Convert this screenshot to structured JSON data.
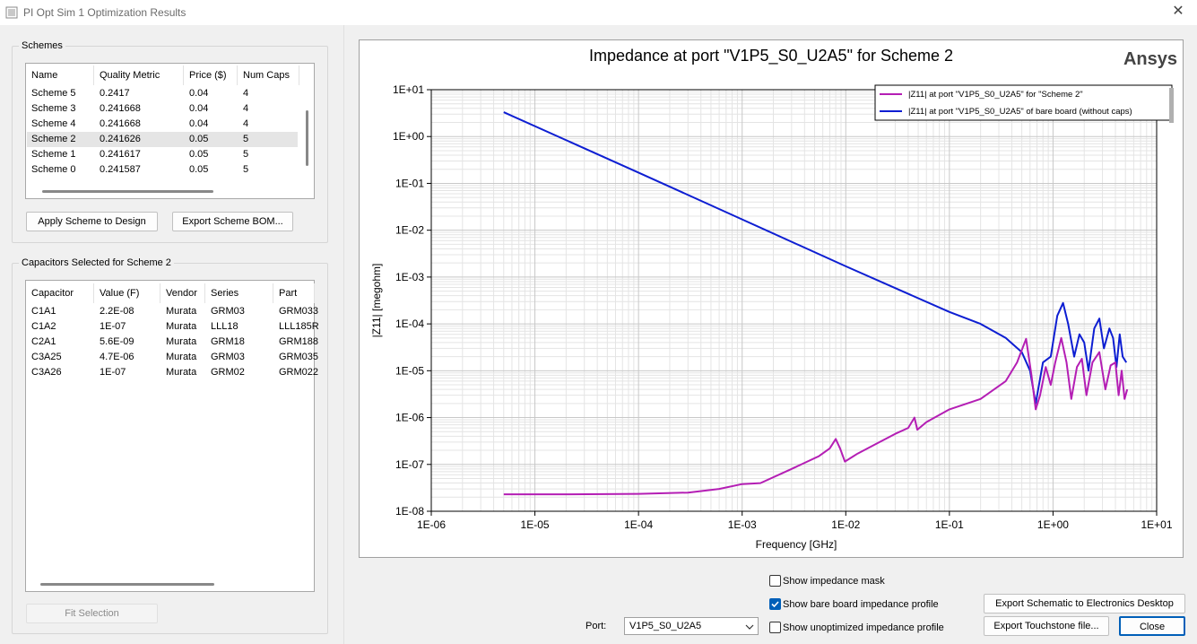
{
  "window": {
    "title": "PI Opt Sim 1 Optimization Results"
  },
  "schemes": {
    "group_title": "Schemes",
    "headers": [
      "Name",
      "Quality Metric",
      "Price ($)",
      "Num Caps"
    ],
    "rows": [
      [
        "Scheme 5",
        "0.2417",
        "0.04",
        "4"
      ],
      [
        "Scheme 3",
        "0.241668",
        "0.04",
        "4"
      ],
      [
        "Scheme 4",
        "0.241668",
        "0.04",
        "4"
      ],
      [
        "Scheme 2",
        "0.241626",
        "0.05",
        "5"
      ],
      [
        "Scheme 1",
        "0.241617",
        "0.05",
        "5"
      ],
      [
        "Scheme 0",
        "0.241587",
        "0.05",
        "5"
      ]
    ],
    "selected_index": 3,
    "apply_label": "Apply Scheme to Design",
    "export_bom_label": "Export Scheme BOM..."
  },
  "capacitors": {
    "group_title": "Capacitors Selected for Scheme 2",
    "headers": [
      "Capacitor",
      "Value (F)",
      "Vendor",
      "Series",
      "Part"
    ],
    "rows": [
      [
        "C1A1",
        "2.2E-08",
        "Murata",
        "GRM03",
        "GRM033"
      ],
      [
        "C1A2",
        "1E-07",
        "Murata",
        "LLL18",
        "LLL185R"
      ],
      [
        "C2A1",
        "5.6E-09",
        "Murata",
        "GRM18",
        "GRM188"
      ],
      [
        "C3A25",
        "4.7E-06",
        "Murata",
        "GRM03",
        "GRM035"
      ],
      [
        "C3A26",
        "1E-07",
        "Murata",
        "GRM02",
        "GRM022"
      ]
    ],
    "fit_label": "Fit Selection"
  },
  "controls": {
    "show_mask_label": "Show impedance mask",
    "show_mask_checked": false,
    "show_bare_label": "Show bare board impedance profile",
    "show_bare_checked": true,
    "show_unopt_label": "Show unoptimized impedance profile",
    "show_unopt_checked": false,
    "port_label": "Port:",
    "port_value": "V1P5_S0_U2A5",
    "export_schematic_label": "Export Schematic to Electronics Desktop",
    "export_touchstone_label": "Export Touchstone file...",
    "close_label": "Close"
  },
  "chart_data": {
    "type": "line",
    "title": "Impedance at port \"V1P5_S0_U2A5\" for Scheme 2",
    "brand": "Ansys",
    "xlabel": "Frequency [GHz]",
    "ylabel": "|Z11| [megohm]",
    "x_scale": "log",
    "y_scale": "log",
    "xlim": [
      1e-06,
      10
    ],
    "ylim": [
      1e-08,
      10
    ],
    "x_ticks": [
      "1E-06",
      "1E-05",
      "1E-04",
      "1E-03",
      "1E-02",
      "1E-01",
      "1E+00",
      "1E+01"
    ],
    "y_ticks": [
      "1E-08",
      "1E-07",
      "1E-06",
      "1E-05",
      "1E-04",
      "1E-03",
      "1E-02",
      "1E-01",
      "1E+00",
      "1E+01"
    ],
    "grid": true,
    "legend_position": "top-right",
    "series": [
      {
        "name": "|Z11| at port \"V1P5_S0_U2A5\" for \"Scheme 2\"",
        "color": "#b41eb4",
        "points": [
          [
            5e-06,
            2.3e-08
          ],
          [
            2e-05,
            2.3e-08
          ],
          [
            0.0001,
            2.35e-08
          ],
          [
            0.0003,
            2.5e-08
          ],
          [
            0.0006,
            3e-08
          ],
          [
            0.001,
            3.8e-08
          ],
          [
            0.0015,
            4e-08
          ],
          [
            0.003,
            8e-08
          ],
          [
            0.0055,
            1.5e-07
          ],
          [
            0.007,
            2.2e-07
          ],
          [
            0.008,
            3.5e-07
          ],
          [
            0.0088,
            2.2e-07
          ],
          [
            0.0098,
            1.15e-07
          ],
          [
            0.013,
            1.7e-07
          ],
          [
            0.02,
            2.8e-07
          ],
          [
            0.03,
            4.5e-07
          ],
          [
            0.04,
            6e-07
          ],
          [
            0.046,
            1e-06
          ],
          [
            0.049,
            5.5e-07
          ],
          [
            0.06,
            8e-07
          ],
          [
            0.1,
            1.5e-06
          ],
          [
            0.2,
            2.5e-06
          ],
          [
            0.35,
            6e-06
          ],
          [
            0.45,
            1.5e-05
          ],
          [
            0.55,
            4.8e-05
          ],
          [
            0.62,
            8e-06
          ],
          [
            0.68,
            1.5e-06
          ],
          [
            0.75,
            3e-06
          ],
          [
            0.85,
            1.2e-05
          ],
          [
            0.95,
            5e-06
          ],
          [
            1.05,
            1.5e-05
          ],
          [
            1.2,
            5e-05
          ],
          [
            1.35,
            1.5e-05
          ],
          [
            1.5,
            2.5e-06
          ],
          [
            1.7,
            1.2e-05
          ],
          [
            1.9,
            1.8e-05
          ],
          [
            2.1,
            3e-06
          ],
          [
            2.4,
            1.5e-05
          ],
          [
            2.8,
            2.5e-05
          ],
          [
            3.2,
            4e-06
          ],
          [
            3.6,
            1.3e-05
          ],
          [
            4.0,
            1.5e-05
          ],
          [
            4.3,
            3e-06
          ],
          [
            4.6,
            1e-05
          ],
          [
            4.9,
            2.5e-06
          ],
          [
            5.2,
            4e-06
          ]
        ]
      },
      {
        "name": "|Z11| at port \"V1P5_S0_U2A5\" of bare board (without caps)",
        "color": "#0d1ed2",
        "points": [
          [
            5e-06,
            3.3
          ],
          [
            0.0001,
            0.17
          ],
          [
            0.001,
            0.017
          ],
          [
            0.01,
            0.0017
          ],
          [
            0.1,
            0.00018
          ],
          [
            0.2,
            0.0001
          ],
          [
            0.35,
            5e-05
          ],
          [
            0.5,
            2.5e-05
          ],
          [
            0.6,
            1e-05
          ],
          [
            0.68,
            2e-06
          ],
          [
            0.8,
            1.5e-05
          ],
          [
            0.95,
            2e-05
          ],
          [
            1.1,
            0.00015
          ],
          [
            1.25,
            0.00028
          ],
          [
            1.4,
            0.0001
          ],
          [
            1.6,
            2e-05
          ],
          [
            1.8,
            6e-05
          ],
          [
            2.0,
            4e-05
          ],
          [
            2.2,
            1e-05
          ],
          [
            2.5,
            8e-05
          ],
          [
            2.8,
            0.00013
          ],
          [
            3.1,
            3e-05
          ],
          [
            3.5,
            8e-05
          ],
          [
            3.8,
            5e-05
          ],
          [
            4.1,
            1.2e-05
          ],
          [
            4.4,
            6e-05
          ],
          [
            4.7,
            2e-05
          ],
          [
            5.1,
            1.5e-05
          ]
        ]
      }
    ]
  }
}
